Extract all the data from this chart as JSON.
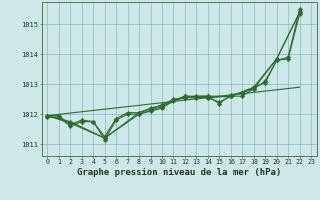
{
  "title": "Graphe pression niveau de la mer (hPa)",
  "background_color": "#cce8e8",
  "grid_color": "#88bbbb",
  "line_color": "#2d6b2d",
  "marker_color": "#2d6b2d",
  "xlim": [
    -0.5,
    23.5
  ],
  "ylim": [
    1010.6,
    1015.75
  ],
  "yticks": [
    1011,
    1012,
    1013,
    1014,
    1015
  ],
  "xticks": [
    0,
    1,
    2,
    3,
    4,
    5,
    6,
    7,
    8,
    9,
    10,
    11,
    12,
    13,
    14,
    15,
    16,
    17,
    18,
    19,
    20,
    21,
    22,
    23
  ],
  "series": [
    [
      0,
      1011.95,
      1,
      1011.95,
      2,
      1011.65,
      3,
      1011.8,
      4,
      1011.75,
      5,
      1011.15,
      6,
      1011.8,
      7,
      1012.0,
      8,
      1012.0,
      9,
      1012.1,
      10,
      1012.2,
      11,
      1012.45,
      12,
      1012.55,
      13,
      1012.55,
      14,
      1012.55,
      15,
      1012.4,
      16,
      1012.6,
      17,
      1012.6,
      18,
      1012.85,
      19,
      1013.1,
      20,
      1013.8,
      21,
      1013.85,
      22,
      1015.35
    ],
    [
      0,
      1011.9,
      1,
      1011.9,
      2,
      1011.6,
      3,
      1011.75,
      4,
      1011.75,
      5,
      1011.25,
      6,
      1011.85,
      7,
      1012.05,
      8,
      1012.05,
      9,
      1012.2,
      10,
      1012.3,
      11,
      1012.5,
      12,
      1012.55,
      13,
      1012.6,
      14,
      1012.6,
      15,
      1012.35,
      16,
      1012.65,
      17,
      1012.7,
      18,
      1012.9,
      19,
      1013.05,
      20,
      1013.8,
      21,
      1013.9,
      22,
      1015.5
    ],
    [
      0,
      1011.95,
      2,
      1011.7,
      5,
      1011.2,
      8,
      1012.0,
      10,
      1012.25,
      12,
      1012.6,
      14,
      1012.6,
      16,
      1012.6,
      18,
      1012.9,
      20,
      1013.85,
      22,
      1015.4
    ],
    [
      0,
      1011.95,
      2,
      1011.75,
      5,
      1011.2,
      8,
      1012.05,
      10,
      1012.3,
      12,
      1012.6,
      14,
      1012.55,
      16,
      1012.6,
      18,
      1012.85,
      20,
      1013.85,
      22,
      1015.4
    ]
  ],
  "series_x": [
    [
      0,
      1,
      2,
      3,
      4,
      5,
      6,
      7,
      8,
      9,
      10,
      11,
      12,
      13,
      14,
      15,
      16,
      17,
      18,
      19,
      20,
      21,
      22
    ],
    [
      0,
      1,
      2,
      3,
      4,
      5,
      6,
      7,
      8,
      9,
      10,
      11,
      12,
      13,
      14,
      15,
      16,
      17,
      18,
      19,
      20,
      21,
      22
    ],
    [
      0,
      2,
      5,
      8,
      10,
      12,
      14,
      16,
      18,
      20,
      22
    ],
    [
      0,
      2,
      5,
      8,
      10,
      12,
      14,
      16,
      18,
      20,
      22
    ]
  ],
  "series_y": [
    [
      1011.95,
      1011.95,
      1011.65,
      1011.8,
      1011.75,
      1011.15,
      1011.8,
      1012.0,
      1012.0,
      1012.1,
      1012.2,
      1012.45,
      1012.55,
      1012.55,
      1012.55,
      1012.4,
      1012.6,
      1012.6,
      1012.85,
      1013.1,
      1013.8,
      1013.85,
      1015.35
    ],
    [
      1011.9,
      1011.9,
      1011.6,
      1011.75,
      1011.75,
      1011.25,
      1011.85,
      1012.05,
      1012.05,
      1012.2,
      1012.3,
      1012.5,
      1012.55,
      1012.6,
      1012.6,
      1012.35,
      1012.65,
      1012.7,
      1012.9,
      1013.05,
      1013.8,
      1013.9,
      1015.5
    ],
    [
      1011.95,
      1011.7,
      1011.2,
      1012.0,
      1012.25,
      1012.6,
      1012.6,
      1012.6,
      1012.9,
      1013.85,
      1015.4
    ],
    [
      1011.95,
      1011.75,
      1011.2,
      1012.05,
      1012.3,
      1012.6,
      1012.55,
      1012.6,
      1012.85,
      1013.85,
      1015.4
    ]
  ],
  "flat_series_x": [
    0,
    22
  ],
  "flat_series_y": [
    1011.95,
    1012.9
  ]
}
